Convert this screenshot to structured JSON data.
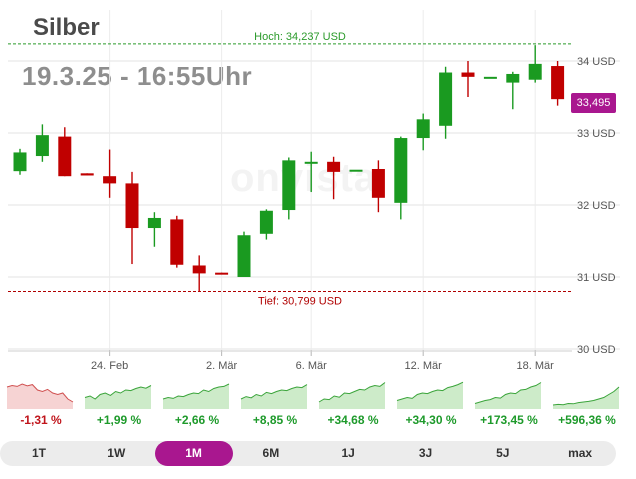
{
  "header": {
    "title": "Silber",
    "datetime": "19.3.25 - 16:55Uhr"
  },
  "watermark": "onvista",
  "colors": {
    "up": "#1a9a20",
    "down": "#c00000",
    "accent": "#a9178f",
    "high_line": "#2a9a2a",
    "low_line": "#b00000"
  },
  "chart_data": {
    "type": "candlestick",
    "y_unit": "USD",
    "ylim": [
      30,
      34.4
    ],
    "y_ticks": [
      {
        "value": 34,
        "label": "34 USD"
      },
      {
        "value": 33,
        "label": "33 USD"
      },
      {
        "value": 32,
        "label": "32 USD"
      },
      {
        "value": 31,
        "label": "31 USD"
      },
      {
        "value": 30,
        "label": "30 USD"
      }
    ],
    "x_ticks": [
      {
        "index": 4,
        "label": "24. Feb"
      },
      {
        "index": 9,
        "label": "2. Mär"
      },
      {
        "index": 13,
        "label": "6. Mär"
      },
      {
        "index": 18,
        "label": "12. Mär"
      },
      {
        "index": 23,
        "label": "18. Mär"
      }
    ],
    "high": {
      "value": 34.237,
      "label": "Hoch: 34,237 USD"
    },
    "low": {
      "value": 30.799,
      "label": "Tief: 30,799 USD"
    },
    "last_price": {
      "value": 33.495,
      "label": "33,495"
    },
    "candles": [
      {
        "open": 32.47,
        "close": 32.73,
        "high": 32.78,
        "low": 32.42
      },
      {
        "open": 32.68,
        "close": 32.97,
        "high": 33.12,
        "low": 32.6
      },
      {
        "open": 32.95,
        "close": 32.4,
        "high": 33.08,
        "low": 32.4
      },
      {
        "open": 32.44,
        "close": 32.41,
        "high": 32.44,
        "low": 32.41
      },
      {
        "open": 32.4,
        "close": 32.3,
        "high": 32.77,
        "low": 32.1
      },
      {
        "open": 32.3,
        "close": 31.68,
        "high": 32.46,
        "low": 31.18
      },
      {
        "open": 31.68,
        "close": 31.82,
        "high": 31.9,
        "low": 31.42
      },
      {
        "open": 31.8,
        "close": 31.17,
        "high": 31.85,
        "low": 31.13
      },
      {
        "open": 31.16,
        "close": 31.05,
        "high": 31.3,
        "low": 30.8
      },
      {
        "open": 31.06,
        "close": 31.05,
        "high": 31.06,
        "low": 31.05
      },
      {
        "open": 31.0,
        "close": 31.58,
        "high": 31.63,
        "low": 31.0
      },
      {
        "open": 31.6,
        "close": 31.92,
        "high": 31.94,
        "low": 31.52
      },
      {
        "open": 31.93,
        "close": 32.62,
        "high": 32.66,
        "low": 31.8
      },
      {
        "open": 32.6,
        "close": 32.6,
        "high": 32.74,
        "low": 32.18
      },
      {
        "open": 32.6,
        "close": 32.46,
        "high": 32.67,
        "low": 32.08
      },
      {
        "open": 32.49,
        "close": 32.49,
        "high": 32.49,
        "low": 32.49
      },
      {
        "open": 32.5,
        "close": 32.1,
        "high": 32.62,
        "low": 31.9
      },
      {
        "open": 32.03,
        "close": 32.93,
        "high": 32.95,
        "low": 31.8
      },
      {
        "open": 32.93,
        "close": 33.19,
        "high": 33.27,
        "low": 32.76
      },
      {
        "open": 33.1,
        "close": 33.84,
        "high": 33.92,
        "low": 32.92
      },
      {
        "open": 33.84,
        "close": 33.78,
        "high": 34.0,
        "low": 33.5
      },
      {
        "open": 33.78,
        "close": 33.78,
        "high": 33.78,
        "low": 33.78
      },
      {
        "open": 33.7,
        "close": 33.82,
        "high": 33.85,
        "low": 33.33
      },
      {
        "open": 33.74,
        "close": 33.96,
        "high": 34.22,
        "low": 33.7
      },
      {
        "open": 33.93,
        "close": 33.47,
        "high": 34.0,
        "low": 33.38
      }
    ]
  },
  "performance": [
    {
      "label": "-1,31 %",
      "trend": "down",
      "values": [
        0.7,
        0.75,
        0.72,
        0.8,
        0.74,
        0.78,
        0.6,
        0.55,
        0.62,
        0.5,
        0.45,
        0.5,
        0.3,
        0.2
      ]
    },
    {
      "label": "+1,99 %",
      "trend": "up",
      "values": [
        0.35,
        0.4,
        0.3,
        0.45,
        0.5,
        0.42,
        0.55,
        0.5,
        0.6,
        0.58,
        0.65,
        0.7,
        0.66,
        0.75
      ]
    },
    {
      "label": "+2,66 %",
      "trend": "up",
      "values": [
        0.3,
        0.35,
        0.32,
        0.4,
        0.38,
        0.45,
        0.5,
        0.48,
        0.6,
        0.55,
        0.65,
        0.7,
        0.72,
        0.8
      ]
    },
    {
      "label": "+8,85 %",
      "trend": "up",
      "values": [
        0.3,
        0.38,
        0.34,
        0.45,
        0.4,
        0.52,
        0.48,
        0.55,
        0.6,
        0.58,
        0.65,
        0.7,
        0.68,
        0.78
      ]
    },
    {
      "label": "+34,68 %",
      "trend": "up",
      "values": [
        0.2,
        0.3,
        0.28,
        0.4,
        0.36,
        0.5,
        0.48,
        0.55,
        0.62,
        0.6,
        0.7,
        0.75,
        0.72,
        0.85
      ]
    },
    {
      "label": "+34,30 %",
      "trend": "up",
      "values": [
        0.25,
        0.3,
        0.35,
        0.32,
        0.45,
        0.5,
        0.48,
        0.55,
        0.6,
        0.58,
        0.68,
        0.72,
        0.78,
        0.86
      ]
    },
    {
      "label": "+173,45 %",
      "trend": "up",
      "values": [
        0.15,
        0.2,
        0.25,
        0.28,
        0.35,
        0.33,
        0.45,
        0.5,
        0.48,
        0.6,
        0.62,
        0.7,
        0.75,
        0.85
      ]
    },
    {
      "label": "+596,36 %",
      "trend": "up",
      "values": [
        0.1,
        0.12,
        0.11,
        0.15,
        0.14,
        0.18,
        0.2,
        0.22,
        0.25,
        0.3,
        0.35,
        0.45,
        0.55,
        0.7
      ]
    }
  ],
  "ranges": [
    {
      "label": "1T",
      "active": false
    },
    {
      "label": "1W",
      "active": false
    },
    {
      "label": "1M",
      "active": true
    },
    {
      "label": "6M",
      "active": false
    },
    {
      "label": "1J",
      "active": false
    },
    {
      "label": "3J",
      "active": false
    },
    {
      "label": "5J",
      "active": false
    },
    {
      "label": "max",
      "active": false
    }
  ]
}
